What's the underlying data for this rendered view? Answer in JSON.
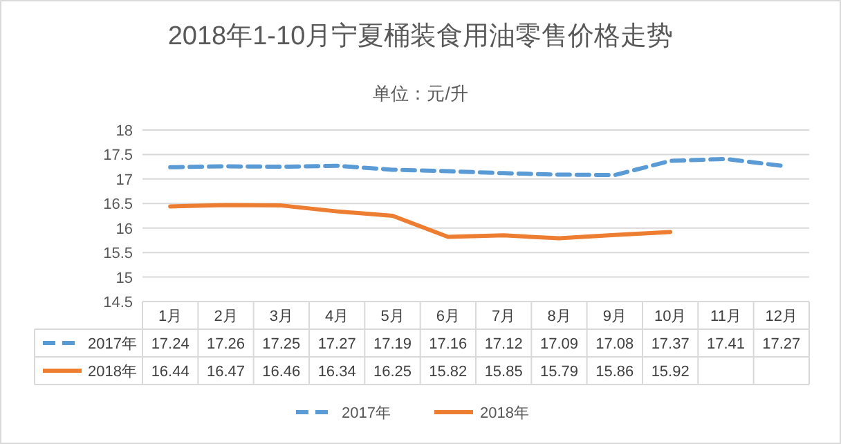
{
  "chart_data": {
    "type": "line",
    "title": "2018年1-10月宁夏桶装食用油零售价格走势",
    "subtitle": "单位：元/升",
    "categories": [
      "1月",
      "2月",
      "3月",
      "4月",
      "5月",
      "6月",
      "7月",
      "8月",
      "9月",
      "10月",
      "11月",
      "12月"
    ],
    "series": [
      {
        "name": "2017年",
        "color": "#5b9bd5",
        "line_style": "dashed",
        "values": [
          17.24,
          17.26,
          17.25,
          17.27,
          17.19,
          17.16,
          17.12,
          17.09,
          17.08,
          17.37,
          17.41,
          17.27
        ]
      },
      {
        "name": "2018年",
        "color": "#ed7d31",
        "line_style": "solid",
        "values": [
          16.44,
          16.47,
          16.46,
          16.34,
          16.25,
          15.82,
          15.85,
          15.79,
          15.86,
          15.92,
          null,
          null
        ]
      }
    ],
    "ylim": [
      14.5,
      18
    ],
    "yticks": [
      14.5,
      15,
      15.5,
      16,
      16.5,
      17,
      17.5,
      18
    ],
    "grid": "y",
    "legend": "bottom",
    "data_labels": true
  }
}
